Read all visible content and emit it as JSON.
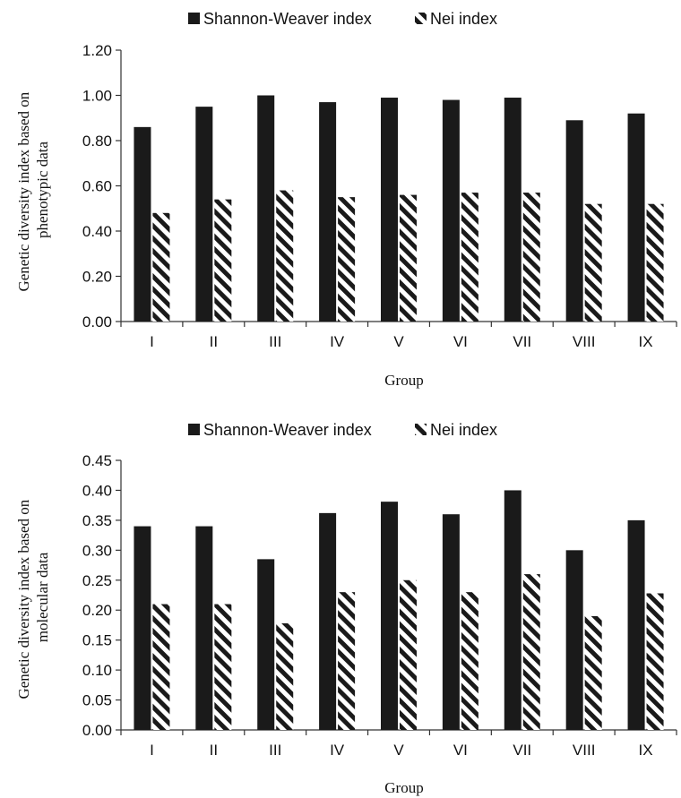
{
  "chart_data": [
    {
      "type": "bar",
      "title": "",
      "xlabel": "Group",
      "ylabel": "Genetic diversity index based on phenotypic data",
      "ylabel_lines": [
        "Genetic diversity index based on",
        "phenotypic data"
      ],
      "ylim": [
        0,
        1.2
      ],
      "yticks": [
        "0.00",
        "0.20",
        "0.40",
        "0.60",
        "0.80",
        "1.00",
        "1.20"
      ],
      "legend_position": "top",
      "categories": [
        "I",
        "II",
        "III",
        "IV",
        "V",
        "VI",
        "VII",
        "VIII",
        "IX"
      ],
      "series": [
        {
          "name": "Shannon-Weaver index",
          "style": "solid",
          "values": [
            0.86,
            0.95,
            1.0,
            0.97,
            0.99,
            0.98,
            0.99,
            0.89,
            0.92
          ]
        },
        {
          "name": "Nei index",
          "style": "hatched",
          "values": [
            0.48,
            0.54,
            0.58,
            0.55,
            0.56,
            0.57,
            0.57,
            0.52,
            0.52
          ]
        }
      ]
    },
    {
      "type": "bar",
      "title": "",
      "xlabel": "Group",
      "ylabel": "Genetic diversity index based on molecular data",
      "ylabel_lines": [
        "Genetic diversity index based on",
        "molecular data"
      ],
      "ylim": [
        0,
        0.45
      ],
      "yticks": [
        "0.00",
        "0.05",
        "0.10",
        "0.15",
        "0.20",
        "0.25",
        "0.30",
        "0.35",
        "0.40",
        "0.45"
      ],
      "legend_position": "top",
      "categories": [
        "I",
        "II",
        "III",
        "IV",
        "V",
        "VI",
        "VII",
        "VIII",
        "IX"
      ],
      "series": [
        {
          "name": "Shannon-Weaver index",
          "style": "solid",
          "values": [
            0.34,
            0.34,
            0.285,
            0.362,
            0.381,
            0.36,
            0.4,
            0.3,
            0.35
          ]
        },
        {
          "name": "Nei index",
          "style": "hatched",
          "values": [
            0.21,
            0.21,
            0.178,
            0.23,
            0.25,
            0.23,
            0.26,
            0.19,
            0.228
          ]
        }
      ]
    }
  ],
  "colors": {
    "bar": "#1a1a1a",
    "axis": "#333333",
    "text": "#111111"
  }
}
